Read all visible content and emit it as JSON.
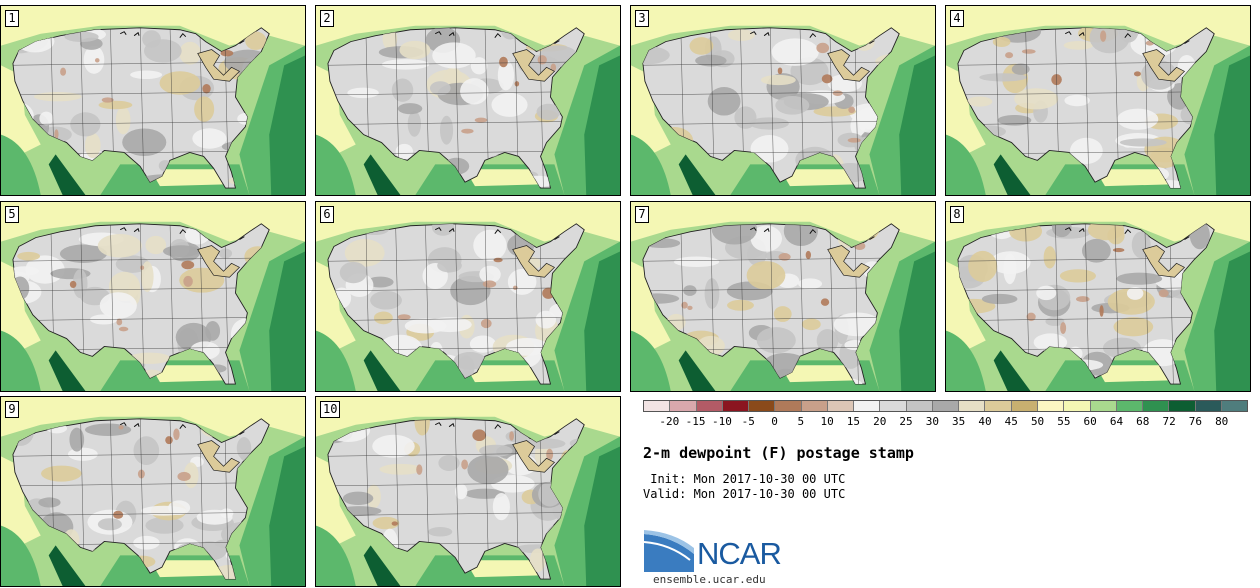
{
  "panels": [
    {
      "label": "1",
      "variant": 0
    },
    {
      "label": "2",
      "variant": 1
    },
    {
      "label": "3",
      "variant": 2
    },
    {
      "label": "4",
      "variant": 3
    },
    {
      "label": "5",
      "variant": 4
    },
    {
      "label": "6",
      "variant": 5
    },
    {
      "label": "7",
      "variant": 6
    },
    {
      "label": "8",
      "variant": 7
    },
    {
      "label": "9",
      "variant": 8
    },
    {
      "label": "10",
      "variant": 9
    }
  ],
  "colorbar": {
    "ticks": [
      "-20",
      "-15",
      "-10",
      "-5",
      "0",
      "5",
      "10",
      "15",
      "20",
      "25",
      "30",
      "35",
      "40",
      "45",
      "50",
      "55",
      "60",
      "64",
      "68",
      "72",
      "76",
      "80"
    ],
    "colors": [
      "#f2e4e4",
      "#d9a8ad",
      "#b35b66",
      "#8b1520",
      "#8a4a1a",
      "#b07a5a",
      "#c8a08a",
      "#dcc6b6",
      "#f2f2f2",
      "#dadada",
      "#c4c4c4",
      "#a9a9a9",
      "#e6dfc6",
      "#dccb9a",
      "#c8b070",
      "#fbf6c2",
      "#f4f7b4",
      "#a9d98e",
      "#5cb86c",
      "#2f9150",
      "#0d5e32",
      "#2a5a5a",
      "#4f7d7d"
    ]
  },
  "title": "2-m dewpoint (F) postage stamp",
  "init": " Init: Mon 2017-10-30 00 UTC",
  "valid": "Valid: Mon 2017-10-30 00 UTC",
  "logo": {
    "text": "NCAR",
    "color": "#1a5aa0"
  },
  "site": "ensemble.ucar.edu"
}
